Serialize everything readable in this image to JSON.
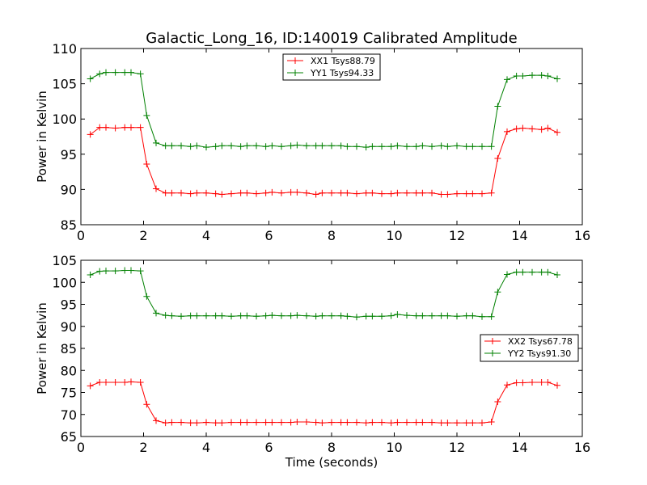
{
  "figure": {
    "title": "Galactic_Long_16, ID:140019 Calibrated Amplitude"
  },
  "chart_data": [
    {
      "type": "line",
      "xlabel": "",
      "ylabel": "Power in Kelvin",
      "xlim": [
        0,
        16
      ],
      "ylim": [
        85,
        110
      ],
      "xticks": [
        0,
        2,
        4,
        6,
        8,
        10,
        12,
        14,
        16
      ],
      "yticks": [
        85,
        90,
        95,
        100,
        105,
        110
      ],
      "legend_position": "top-center",
      "x": [
        0.3,
        0.6,
        0.8,
        1.1,
        1.4,
        1.6,
        1.9,
        2.1,
        2.4,
        2.7,
        2.9,
        3.2,
        3.5,
        3.7,
        4.0,
        4.3,
        4.5,
        4.8,
        5.1,
        5.3,
        5.6,
        5.9,
        6.1,
        6.4,
        6.7,
        6.9,
        7.2,
        7.5,
        7.7,
        8.0,
        8.3,
        8.5,
        8.8,
        9.1,
        9.3,
        9.6,
        9.9,
        10.1,
        10.4,
        10.7,
        10.9,
        11.2,
        11.5,
        11.7,
        12.0,
        12.3,
        12.5,
        12.8,
        13.1,
        13.3,
        13.6,
        13.9,
        14.1,
        14.4,
        14.7,
        14.9,
        15.2
      ],
      "series": [
        {
          "name": "XX1 Tsys88.79",
          "color": "#ff0000",
          "values": [
            97.8,
            98.8,
            98.8,
            98.7,
            98.8,
            98.8,
            98.8,
            93.6,
            90.1,
            89.5,
            89.5,
            89.5,
            89.4,
            89.5,
            89.5,
            89.4,
            89.3,
            89.4,
            89.5,
            89.5,
            89.4,
            89.5,
            89.6,
            89.5,
            89.6,
            89.6,
            89.5,
            89.3,
            89.5,
            89.5,
            89.5,
            89.5,
            89.4,
            89.5,
            89.5,
            89.4,
            89.4,
            89.5,
            89.5,
            89.5,
            89.5,
            89.5,
            89.3,
            89.3,
            89.4,
            89.4,
            89.4,
            89.4,
            89.5,
            94.4,
            98.2,
            98.6,
            98.7,
            98.6,
            98.5,
            98.7,
            98.1
          ]
        },
        {
          "name": "YY1 Tsys94.33",
          "color": "#008000",
          "values": [
            105.7,
            106.4,
            106.6,
            106.6,
            106.6,
            106.6,
            106.4,
            100.5,
            96.6,
            96.2,
            96.2,
            96.2,
            96.1,
            96.2,
            96.0,
            96.1,
            96.2,
            96.2,
            96.1,
            96.2,
            96.2,
            96.1,
            96.2,
            96.1,
            96.2,
            96.3,
            96.2,
            96.2,
            96.2,
            96.2,
            96.2,
            96.1,
            96.1,
            96.0,
            96.1,
            96.1,
            96.1,
            96.2,
            96.1,
            96.1,
            96.2,
            96.1,
            96.2,
            96.1,
            96.2,
            96.1,
            96.1,
            96.1,
            96.1,
            101.8,
            105.6,
            106.1,
            106.1,
            106.2,
            106.2,
            106.1,
            105.7
          ]
        }
      ]
    },
    {
      "type": "line",
      "xlabel": "Time (seconds)",
      "ylabel": "Power in Kelvin",
      "xlim": [
        0,
        16
      ],
      "ylim": [
        65,
        105
      ],
      "xticks": [
        0,
        2,
        4,
        6,
        8,
        10,
        12,
        14,
        16
      ],
      "yticks": [
        65,
        70,
        75,
        80,
        85,
        90,
        95,
        100,
        105
      ],
      "legend_position": "center-right",
      "x": [
        0.3,
        0.6,
        0.8,
        1.1,
        1.4,
        1.6,
        1.9,
        2.1,
        2.4,
        2.7,
        2.9,
        3.2,
        3.5,
        3.7,
        4.0,
        4.3,
        4.5,
        4.8,
        5.1,
        5.3,
        5.6,
        5.9,
        6.1,
        6.4,
        6.7,
        6.9,
        7.2,
        7.5,
        7.7,
        8.0,
        8.3,
        8.5,
        8.8,
        9.1,
        9.3,
        9.6,
        9.9,
        10.1,
        10.4,
        10.7,
        10.9,
        11.2,
        11.5,
        11.7,
        12.0,
        12.3,
        12.5,
        12.8,
        13.1,
        13.3,
        13.6,
        13.9,
        14.1,
        14.4,
        14.7,
        14.9,
        15.2
      ],
      "series": [
        {
          "name": "XX2 Tsys67.78",
          "color": "#ff0000",
          "values": [
            76.5,
            77.3,
            77.3,
            77.3,
            77.3,
            77.4,
            77.3,
            72.3,
            68.6,
            68.1,
            68.2,
            68.2,
            68.1,
            68.1,
            68.2,
            68.1,
            68.1,
            68.2,
            68.2,
            68.2,
            68.2,
            68.2,
            68.2,
            68.2,
            68.2,
            68.3,
            68.3,
            68.2,
            68.1,
            68.2,
            68.2,
            68.2,
            68.2,
            68.1,
            68.2,
            68.2,
            68.1,
            68.2,
            68.2,
            68.2,
            68.2,
            68.2,
            68.1,
            68.1,
            68.1,
            68.1,
            68.1,
            68.1,
            68.3,
            72.9,
            76.7,
            77.2,
            77.2,
            77.3,
            77.3,
            77.3,
            76.6
          ]
        },
        {
          "name": "YY2 Tsys91.30",
          "color": "#008000",
          "values": [
            101.7,
            102.5,
            102.6,
            102.6,
            102.7,
            102.7,
            102.6,
            96.8,
            93.0,
            92.5,
            92.4,
            92.3,
            92.4,
            92.4,
            92.4,
            92.4,
            92.4,
            92.3,
            92.4,
            92.4,
            92.3,
            92.4,
            92.5,
            92.4,
            92.4,
            92.5,
            92.4,
            92.3,
            92.4,
            92.4,
            92.4,
            92.3,
            92.1,
            92.3,
            92.3,
            92.3,
            92.4,
            92.7,
            92.5,
            92.4,
            92.4,
            92.4,
            92.4,
            92.4,
            92.3,
            92.4,
            92.4,
            92.2,
            92.2,
            97.8,
            101.8,
            102.3,
            102.3,
            102.3,
            102.3,
            102.3,
            101.7
          ]
        }
      ]
    }
  ]
}
